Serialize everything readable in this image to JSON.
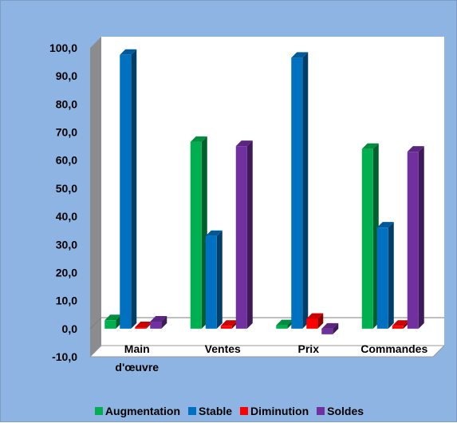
{
  "chart_data": {
    "type": "bar",
    "categories": [
      "Main\nd'œuvre",
      "Ventes",
      "Prix",
      "Commandes"
    ],
    "series": [
      {
        "name": "Augmentation",
        "values": [
          3.0,
          66.5,
          1.2,
          64.0
        ],
        "color": "#00b050"
      },
      {
        "name": "Stable",
        "values": [
          97.5,
          33.0,
          96.5,
          36.0
        ],
        "color": "#0070c0"
      },
      {
        "name": "Diminution",
        "values": [
          0.5,
          1.0,
          3.5,
          1.0
        ],
        "color": "#ff0000"
      },
      {
        "name": "Soldes",
        "values": [
          2.5,
          65.0,
          -2.0,
          63.0
        ],
        "color": "#7030a0"
      }
    ],
    "y_ticks": [
      "100,0",
      "90,0",
      "80,0",
      "70,0",
      "60,0",
      "50,0",
      "40,0",
      "30,0",
      "20,0",
      "10,0",
      "0,0",
      "-10,0"
    ],
    "ylim": [
      -10,
      100
    ],
    "grid": false,
    "legend_position": "bottom",
    "chart_style": "3d-column"
  }
}
